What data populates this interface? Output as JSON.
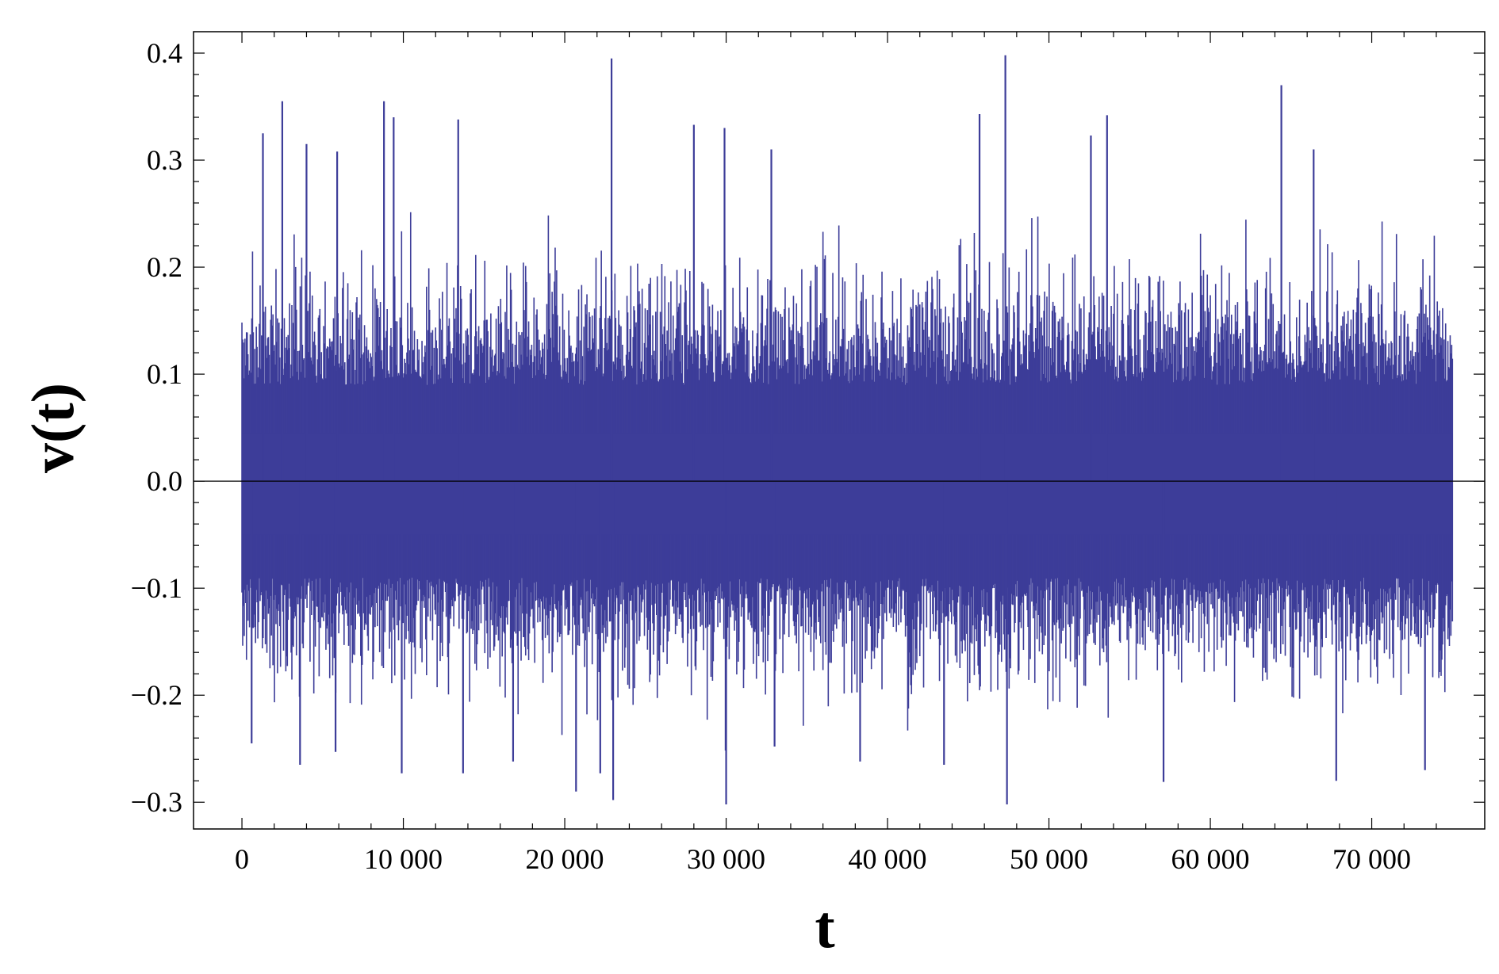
{
  "chart_data": {
    "type": "line",
    "xlabel": "t",
    "ylabel": "v(t)",
    "xlim": [
      -3000,
      77000
    ],
    "ylim": [
      -0.325,
      0.42
    ],
    "x_ticks": [
      {
        "value": 0,
        "label": "0"
      },
      {
        "value": 10000,
        "label": "10 000"
      },
      {
        "value": 20000,
        "label": "20 000"
      },
      {
        "value": 30000,
        "label": "30 000"
      },
      {
        "value": 40000,
        "label": "40 000"
      },
      {
        "value": 50000,
        "label": "50 000"
      },
      {
        "value": 60000,
        "label": "60 000"
      },
      {
        "value": 70000,
        "label": "70 000"
      }
    ],
    "y_ticks": [
      {
        "value": 0.4,
        "label": "0.4"
      },
      {
        "value": 0.3,
        "label": "0.3"
      },
      {
        "value": 0.2,
        "label": "0.2"
      },
      {
        "value": 0.1,
        "label": "0.1"
      },
      {
        "value": 0.0,
        "label": "0.0"
      },
      {
        "value": -0.1,
        "label": "−0.1"
      },
      {
        "value": -0.2,
        "label": "−0.2"
      },
      {
        "value": -0.3,
        "label": "−0.3"
      }
    ],
    "grid": false,
    "frame_ticks": true,
    "series_color": "#3d3d99",
    "series": [
      {
        "x_range": [
          0,
          75000
        ],
        "n_samples": 75000,
        "typical_envelope": [
          -0.12,
          0.12
        ],
        "peaks": [
          {
            "x": 1300,
            "y": 0.325
          },
          {
            "x": 2500,
            "y": 0.355
          },
          {
            "x": 4000,
            "y": 0.315
          },
          {
            "x": 5900,
            "y": 0.308
          },
          {
            "x": 8800,
            "y": 0.355
          },
          {
            "x": 9400,
            "y": 0.34
          },
          {
            "x": 13400,
            "y": 0.338
          },
          {
            "x": 22900,
            "y": 0.395
          },
          {
            "x": 28000,
            "y": 0.333
          },
          {
            "x": 29900,
            "y": 0.33
          },
          {
            "x": 32800,
            "y": 0.31
          },
          {
            "x": 45700,
            "y": 0.343
          },
          {
            "x": 47300,
            "y": 0.398
          },
          {
            "x": 52600,
            "y": 0.323
          },
          {
            "x": 53600,
            "y": 0.342
          },
          {
            "x": 64400,
            "y": 0.37
          },
          {
            "x": 66400,
            "y": 0.31
          }
        ],
        "troughs": [
          {
            "x": 600,
            "y": -0.245
          },
          {
            "x": 3600,
            "y": -0.265
          },
          {
            "x": 5800,
            "y": -0.253
          },
          {
            "x": 9900,
            "y": -0.273
          },
          {
            "x": 13700,
            "y": -0.273
          },
          {
            "x": 16800,
            "y": -0.262
          },
          {
            "x": 20700,
            "y": -0.29
          },
          {
            "x": 22200,
            "y": -0.273
          },
          {
            "x": 23000,
            "y": -0.298
          },
          {
            "x": 30000,
            "y": -0.302
          },
          {
            "x": 33000,
            "y": -0.248
          },
          {
            "x": 38300,
            "y": -0.262
          },
          {
            "x": 43500,
            "y": -0.265
          },
          {
            "x": 47400,
            "y": -0.302
          },
          {
            "x": 57100,
            "y": -0.281
          },
          {
            "x": 67800,
            "y": -0.28
          },
          {
            "x": 73300,
            "y": -0.27
          }
        ]
      }
    ]
  }
}
